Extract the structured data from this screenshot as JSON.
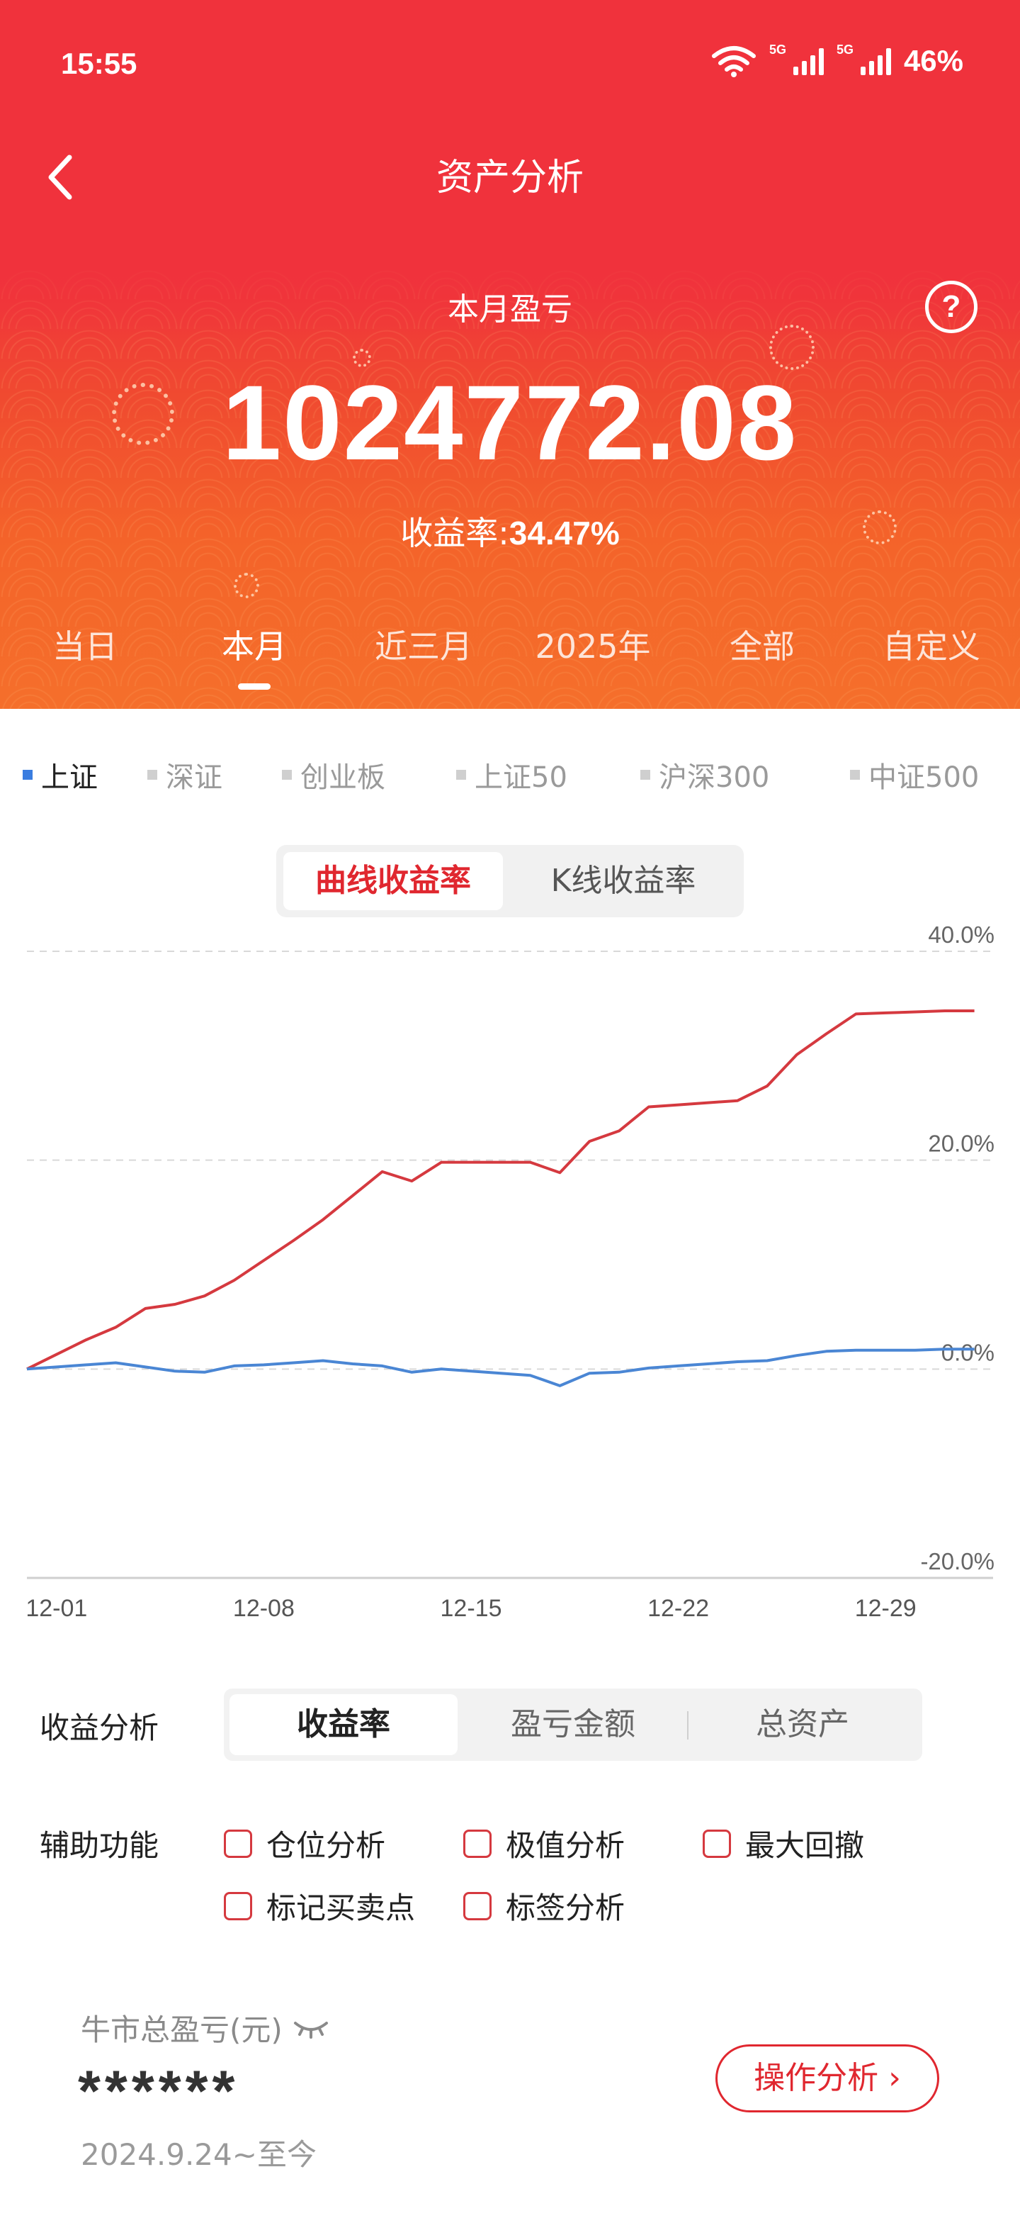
{
  "status_bar": {
    "time": "15:55",
    "battery": "46%",
    "signal_tag": "5G",
    "icons": [
      "wifi-icon",
      "signal-5g-icon",
      "signal-5g-icon"
    ]
  },
  "header": {
    "title": "资产分析",
    "back_icon": "back-arrow-icon",
    "help_icon": "?",
    "pnl_label": "本月盈亏",
    "pnl_value": "1024772.08",
    "rate_label": "收益率:",
    "rate_value": "34.47%"
  },
  "periods": {
    "items": [
      "当日",
      "本月",
      "近三月",
      "2025年",
      "全部",
      "自定义"
    ],
    "selected": "本月"
  },
  "indices": {
    "items": [
      "上证",
      "深证",
      "创业板",
      "上证50",
      "沪深300",
      "中证500"
    ],
    "selected": "上证"
  },
  "chart_toggle": {
    "options": [
      "曲线收益率",
      "K线收益率"
    ],
    "selected": "曲线收益率"
  },
  "chart_data": {
    "type": "line",
    "x": [
      "11-30",
      "12-01",
      "12-02",
      "12-03",
      "12-04",
      "12-05",
      "12-06",
      "12-07",
      "12-08",
      "12-09",
      "12-10",
      "12-11",
      "12-12",
      "12-13",
      "12-14",
      "12-15",
      "12-16",
      "12-17",
      "12-18",
      "12-19",
      "12-20",
      "12-21",
      "12-22",
      "12-23",
      "12-24",
      "12-25",
      "12-26",
      "12-27",
      "12-28",
      "12-29",
      "12-30",
      "12-31",
      "12-32"
    ],
    "x_ticks": [
      "12-01",
      "12-08",
      "12-15",
      "12-22",
      "12-29"
    ],
    "y_ticks": [
      "40.0%",
      "20.0%",
      "0.0%",
      "-20.0%"
    ],
    "ylim": [
      -20,
      40
    ],
    "grid": true,
    "series": [
      {
        "values": [
          0.0,
          1.4,
          2.8,
          4.0,
          5.8,
          6.2,
          7.0,
          8.5,
          10.4,
          12.3,
          14.3,
          16.6,
          18.9,
          18.0,
          19.8,
          19.8,
          19.8,
          19.8,
          18.8,
          21.8,
          22.8,
          25.1,
          25.3,
          25.5,
          25.7,
          27.1,
          30.1,
          32.1,
          34.0,
          34.1,
          34.2,
          34.3,
          34.3
        ],
        "color": "#d5393f"
      },
      {
        "values": [
          0.0,
          0.2,
          0.4,
          0.6,
          0.2,
          -0.2,
          -0.3,
          0.3,
          0.4,
          0.6,
          0.8,
          0.5,
          0.3,
          -0.3,
          0.0,
          -0.2,
          -0.4,
          -0.6,
          -1.6,
          -0.4,
          -0.3,
          0.1,
          0.3,
          0.5,
          0.7,
          0.8,
          1.3,
          1.7,
          1.8,
          1.8,
          1.8,
          1.9,
          1.9
        ],
        "color": "#4a86d4"
      }
    ]
  },
  "analysis": {
    "label": "收益分析",
    "options": [
      "收益率",
      "盈亏金额",
      "总资产"
    ],
    "selected": "收益率"
  },
  "aux": {
    "label": "辅助功能",
    "options": [
      "仓位分析",
      "极值分析",
      "最大回撤",
      "标记买卖点",
      "标签分析"
    ]
  },
  "bull": {
    "title": "牛市总盈亏(元)",
    "eye_icon": "eye-closed-icon",
    "value": "******",
    "range": "2024.9.24~至今",
    "button": "操作分析"
  },
  "colors": {
    "brand_red": "#f0323c",
    "accent_orange": "#f56f2b",
    "line_red": "#d5393f",
    "line_blue": "#4a86d4"
  }
}
